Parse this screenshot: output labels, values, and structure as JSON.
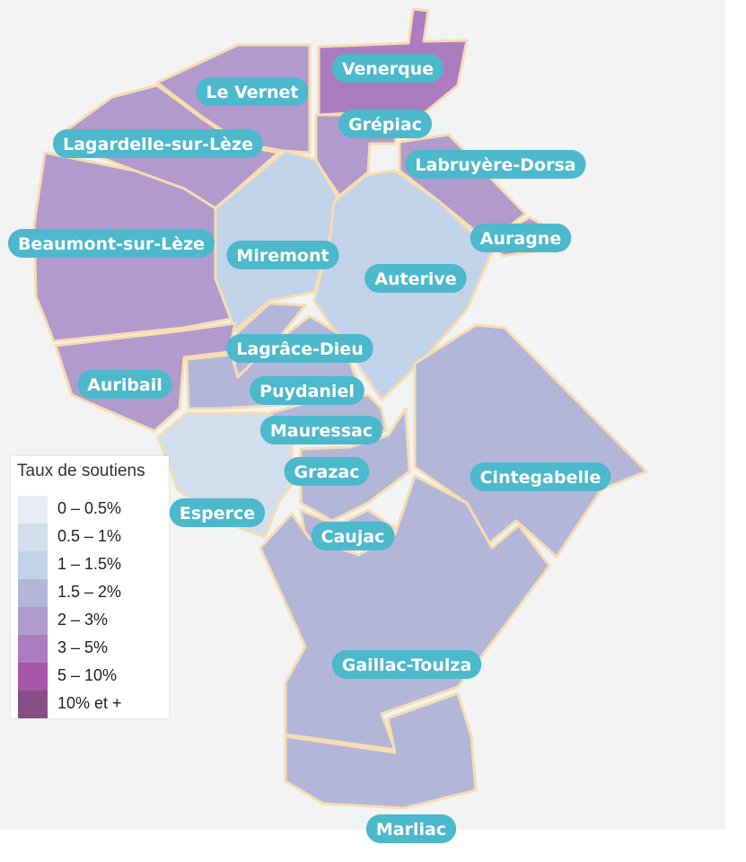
{
  "legend": {
    "title": "Taux de soutiens",
    "items": [
      {
        "label": "0 – 0.5%",
        "color": "#e7eef6"
      },
      {
        "label": "0.5 – 1%",
        "color": "#d3deec"
      },
      {
        "label": "1 – 1.5%",
        "color": "#c0d3e8"
      },
      {
        "label": "1.5 – 2%",
        "color": "#b2b7da"
      },
      {
        "label": "2 – 3%",
        "color": "#b09bcc"
      },
      {
        "label": "3 – 5%",
        "color": "#ad7cc0"
      },
      {
        "label": "5 – 10%",
        "color": "#a655a8"
      },
      {
        "label": "10% et +",
        "color": "#884d86"
      }
    ]
  },
  "colors": {
    "background": "#f2f3f3",
    "border": "#f6ddb1",
    "label_pill": "#4bb8cc",
    "label_text": "#ffffff"
  },
  "communes": [
    {
      "id": "venerque",
      "name": "Venerque",
      "band": "3 – 5%"
    },
    {
      "id": "le-vernet",
      "name": "Le Vernet",
      "band": "2 – 3%"
    },
    {
      "id": "grepiac",
      "name": "Grépiac",
      "band": "2 – 3%"
    },
    {
      "id": "labruyere-dorsa",
      "name": "Labruyère-Dorsa",
      "band": "2 – 3%"
    },
    {
      "id": "lagardelle-sur-leze",
      "name": "Lagardelle-sur-Lèze",
      "band": "2 – 3%"
    },
    {
      "id": "beaumont-sur-leze",
      "name": "Beaumont-sur-Lèze",
      "band": "2 – 3%"
    },
    {
      "id": "auragne",
      "name": "Auragne",
      "band": "2 – 3%"
    },
    {
      "id": "miremont",
      "name": "Miremont",
      "band": "1 – 1.5%"
    },
    {
      "id": "auterive",
      "name": "Auterive",
      "band": "1 – 1.5%"
    },
    {
      "id": "lagrace-dieu",
      "name": "Lagrâce-Dieu",
      "band": "1.5 – 2%"
    },
    {
      "id": "auribail",
      "name": "Auribail",
      "band": "2 – 3%"
    },
    {
      "id": "puydaniel",
      "name": "Puydaniel",
      "band": "1.5 – 2%"
    },
    {
      "id": "mauressac",
      "name": "Mauressac",
      "band": "1.5 – 2%"
    },
    {
      "id": "grazac",
      "name": "Grazac",
      "band": "1.5 – 2%"
    },
    {
      "id": "cintegabelle",
      "name": "Cintegabelle",
      "band": "1.5 – 2%"
    },
    {
      "id": "esperce",
      "name": "Esperce",
      "band": "0.5 – 1%"
    },
    {
      "id": "caujac",
      "name": "Caujac",
      "band": "1.5 – 2%"
    },
    {
      "id": "gaillac-toulza",
      "name": "Gaillac-Toulza",
      "band": "1.5 – 2%"
    },
    {
      "id": "marliac",
      "name": "Marliac",
      "band": "1.5 – 2%"
    }
  ]
}
